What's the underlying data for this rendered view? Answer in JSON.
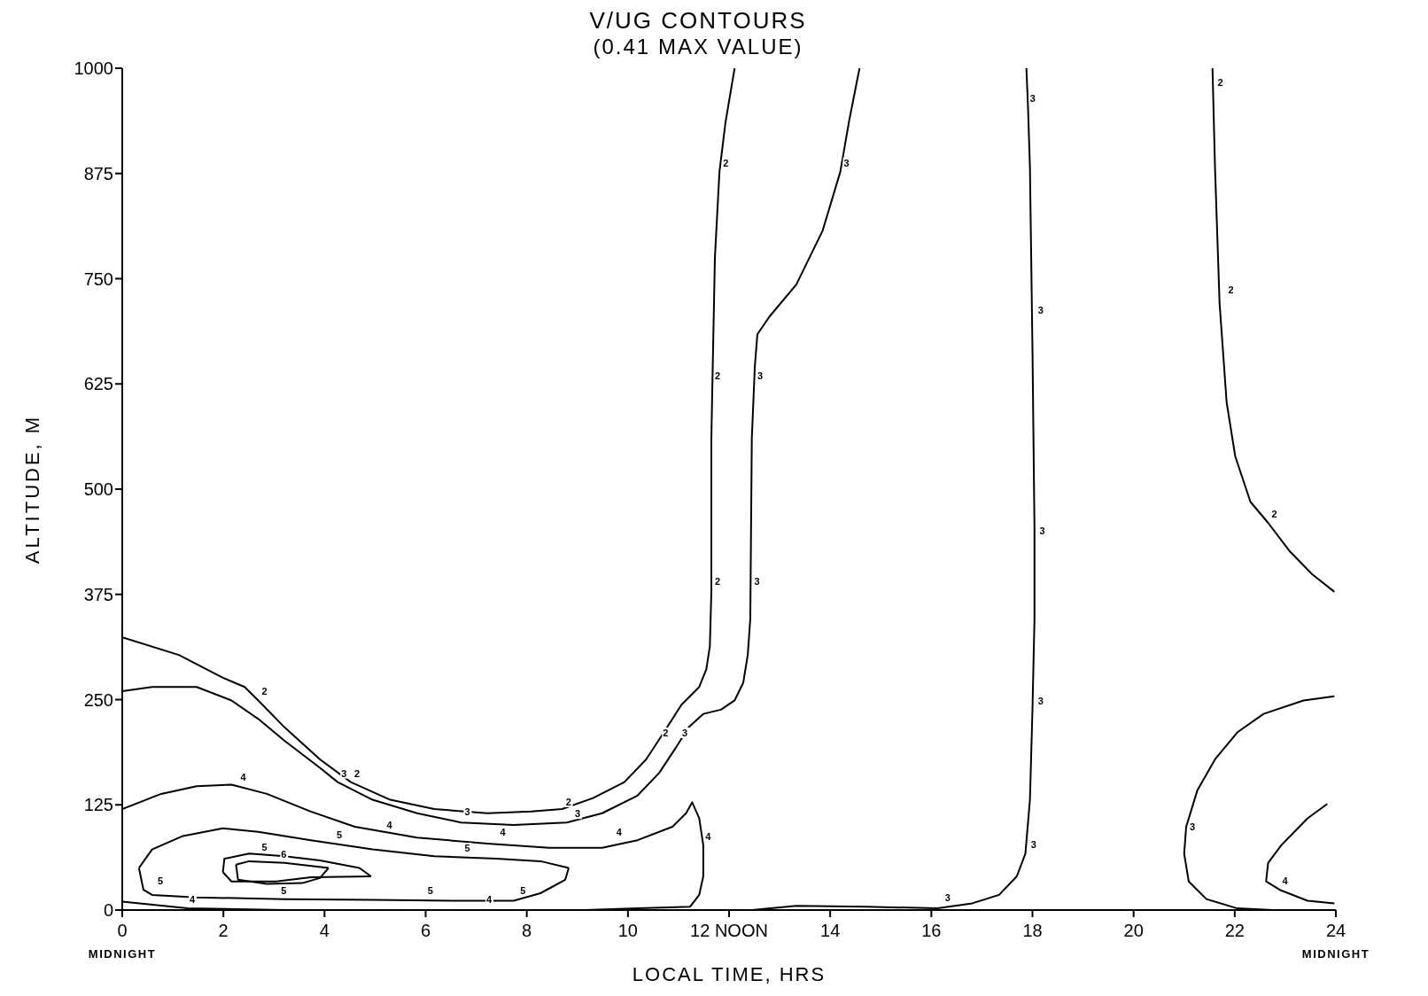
{
  "chart_data": {
    "type": "line",
    "title": "V/UG CONTOURS",
    "subtitle": "(0.41 MAX VALUE)",
    "xlabel": "LOCAL TIME, HRS",
    "ylabel": "ALTITUDE, M",
    "xlim": [
      0,
      24
    ],
    "ylim": [
      0,
      1000
    ],
    "xticks": [
      {
        "value": 0,
        "label": "0 MIDNIGHT"
      },
      2,
      4,
      6,
      8,
      10,
      {
        "value": 12,
        "label": "12 NOON"
      },
      14,
      16,
      18,
      20,
      22,
      {
        "value": 24,
        "label": "24 MIDNIGHT"
      }
    ],
    "yticks": [
      0,
      125,
      250,
      375,
      500,
      625,
      750,
      875,
      1000
    ],
    "grid": false,
    "marker": "none",
    "line_style": "solid",
    "series": [
      {
        "color": "#000000",
        "x": [
          0,
          1.12,
          1.99,
          2.42,
          2.69,
          3.21,
          3.91,
          4.52,
          5.3,
          6.17,
          7.22,
          8.09,
          8.7,
          9.31,
          9.93,
          10.36,
          10.71,
          11.06,
          11.41,
          11.55,
          11.62,
          11.65,
          11.65,
          11.67,
          11.72,
          11.81,
          11.93,
          12.11
        ],
        "values": [
          324,
          303,
          276,
          265,
          249,
          217,
          179,
          152,
          131,
          120,
          115,
          117,
          120,
          133,
          152,
          179,
          211,
          244,
          265,
          286,
          313,
          378,
          560,
          624,
          775,
          877,
          936,
          1000
        ]
      },
      {
        "color": "#000000",
        "x": [
          0,
          0.59,
          1.47,
          2.16,
          2.69,
          3.21,
          3.91,
          4.26,
          4.95,
          5.83,
          6.7,
          7.74,
          8.79,
          9.49,
          10.19,
          10.62,
          10.97,
          11.2,
          11.49,
          11.84,
          12.11,
          12.28,
          12.37,
          12.42,
          12.45,
          12.51,
          12.56,
          12.8,
          13.33,
          13.85,
          14.2,
          14.37,
          14.58
        ],
        "values": [
          260,
          265,
          265,
          249,
          227,
          201,
          169,
          152,
          131,
          115,
          104,
          101,
          104,
          115,
          136,
          163,
          195,
          217,
          233,
          238,
          249,
          270,
          303,
          346,
          560,
          646,
          684,
          705,
          743,
          807,
          877,
          936,
          1000
        ]
      },
      {
        "color": "#000000",
        "x": [
          0,
          0.77,
          1.47,
          2.16,
          2.86,
          3.73,
          4.6,
          5.83,
          7.22,
          8.44,
          9.49,
          10.19,
          10.88,
          11.15,
          11.27,
          11.41,
          11.49,
          11.49,
          11.41,
          11.23,
          10.19,
          9.14,
          3.21,
          1.29,
          0
        ],
        "values": [
          120,
          138,
          147,
          149,
          138,
          117,
          99,
          86,
          79,
          74,
          74,
          83,
          99,
          115,
          128,
          109,
          77,
          40,
          18,
          4,
          2,
          0,
          0,
          2,
          10
        ]
      },
      {
        "color": "#000000",
        "x": [
          0.33,
          0.59,
          1.2,
          1.99,
          2.69,
          3.73,
          4.95,
          6.17,
          7.4,
          8.27,
          8.83
        ],
        "values": [
          50,
          72,
          88,
          97,
          93,
          83,
          72,
          64,
          61,
          58,
          50
        ]
      },
      {
        "color": "#000000",
        "x": [
          0.33,
          0.42,
          0.59,
          1.47,
          3.21,
          4.95,
          6.7,
          7.74,
          8.27,
          8.76,
          8.83
        ],
        "values": [
          50,
          24,
          18,
          15,
          13,
          12,
          11,
          11,
          20,
          36,
          50
        ]
      },
      {
        "color": "#000000",
        "x": [
          1.99,
          2.02,
          2.51,
          3.21,
          3.91,
          4.69,
          4.92
        ],
        "values": [
          45,
          61,
          67,
          64,
          59,
          50,
          40
        ]
      },
      {
        "color": "#000000",
        "x": [
          1.99,
          2.16,
          3.04,
          3.73,
          4.92
        ],
        "values": [
          45,
          34,
          34,
          39,
          40
        ]
      },
      {
        "color": "#000000",
        "x": [
          2.25,
          2.51,
          3.21,
          4.08
        ],
        "values": [
          54,
          58,
          56,
          50
        ]
      },
      {
        "color": "#000000",
        "x": [
          2.25,
          2.29,
          2.86,
          3.56,
          3.91,
          4.08
        ],
        "values": [
          54,
          36,
          31,
          32,
          38,
          50
        ]
      },
      {
        "color": "#000000",
        "x": [
          12.45,
          13.33,
          14.72,
          16.12,
          16.81,
          17.34,
          17.69,
          17.86,
          17.95,
          18.0,
          18.04,
          18.04,
          18.0,
          17.95,
          17.91,
          17.88
        ],
        "values": [
          0,
          5,
          4,
          2,
          8,
          18,
          40,
          67,
          131,
          238,
          346,
          453,
          667,
          882,
          957,
          1000
        ]
      },
      {
        "color": "#000000",
        "x": [
          21.56,
          21.61,
          21.7,
          21.84,
          22.01,
          22.31,
          22.66,
          23.09,
          23.53,
          23.97
        ],
        "values": [
          1000,
          882,
          721,
          603,
          539,
          485,
          460,
          426,
          399,
          378
        ]
      },
      {
        "color": "#000000",
        "x": [
          23.97,
          23.36,
          22.57,
          22.05,
          21.61,
          21.26,
          21.04,
          21.0,
          21.09,
          21.44,
          22.05,
          22.75
        ],
        "values": [
          254,
          249,
          233,
          211,
          179,
          142,
          99,
          67,
          34,
          13,
          2,
          0
        ]
      },
      {
        "color": "#000000",
        "x": [
          23.83,
          23.44,
          22.92,
          22.66,
          22.62,
          22.89,
          23.44,
          23.97
        ],
        "values": [
          126,
          109,
          77,
          56,
          34,
          24,
          11,
          8
        ]
      }
    ],
    "annotations": [
      {
        "text": "2",
        "x": 2.69,
        "y": 249
      },
      {
        "text": "2",
        "x": 4.52,
        "y": 152
      },
      {
        "text": "2",
        "x": 8.7,
        "y": 118
      },
      {
        "text": "2",
        "x": 10.62,
        "y": 200
      },
      {
        "text": "2",
        "x": 11.65,
        "y": 380
      },
      {
        "text": "2",
        "x": 11.65,
        "y": 624
      },
      {
        "text": "2",
        "x": 11.81,
        "y": 877
      },
      {
        "text": "3",
        "x": 4.26,
        "y": 152
      },
      {
        "text": "3",
        "x": 6.7,
        "y": 106
      },
      {
        "text": "3",
        "x": 8.88,
        "y": 104
      },
      {
        "text": "3",
        "x": 11.0,
        "y": 200
      },
      {
        "text": "3",
        "x": 12.43,
        "y": 380
      },
      {
        "text": "3",
        "x": 12.49,
        "y": 624
      },
      {
        "text": "3",
        "x": 14.2,
        "y": 877
      },
      {
        "text": "4",
        "x": 2.27,
        "y": 147
      },
      {
        "text": "4",
        "x": 5.16,
        "y": 91
      },
      {
        "text": "4",
        "x": 7.4,
        "y": 82
      },
      {
        "text": "4",
        "x": 9.7,
        "y": 82
      },
      {
        "text": "4",
        "x": 11.46,
        "y": 77
      },
      {
        "text": "4",
        "x": 1.26,
        "y": 2
      },
      {
        "text": "4",
        "x": 7.13,
        "y": 2
      },
      {
        "text": "5",
        "x": 0.63,
        "y": 24
      },
      {
        "text": "5",
        "x": 4.17,
        "y": 79
      },
      {
        "text": "5",
        "x": 6.7,
        "y": 63
      },
      {
        "text": "5",
        "x": 3.07,
        "y": 13
      },
      {
        "text": "5",
        "x": 5.97,
        "y": 13
      },
      {
        "text": "5",
        "x": 7.8,
        "y": 13
      },
      {
        "text": "5",
        "x": 2.69,
        "y": 64
      },
      {
        "text": "6",
        "x": 3.07,
        "y": 56
      },
      {
        "text": "3",
        "x": 16.2,
        "y": 4
      },
      {
        "text": "3",
        "x": 17.9,
        "y": 67
      },
      {
        "text": "3",
        "x": 18.04,
        "y": 238
      },
      {
        "text": "3",
        "x": 18.07,
        "y": 440
      },
      {
        "text": "3",
        "x": 18.04,
        "y": 702
      },
      {
        "text": "3",
        "x": 17.88,
        "y": 954
      },
      {
        "text": "2",
        "x": 21.59,
        "y": 973
      },
      {
        "text": "2",
        "x": 21.8,
        "y": 726
      },
      {
        "text": "2",
        "x": 22.66,
        "y": 460
      },
      {
        "text": "3",
        "x": 21.04,
        "y": 88
      },
      {
        "text": "4",
        "x": 22.87,
        "y": 24
      }
    ]
  }
}
